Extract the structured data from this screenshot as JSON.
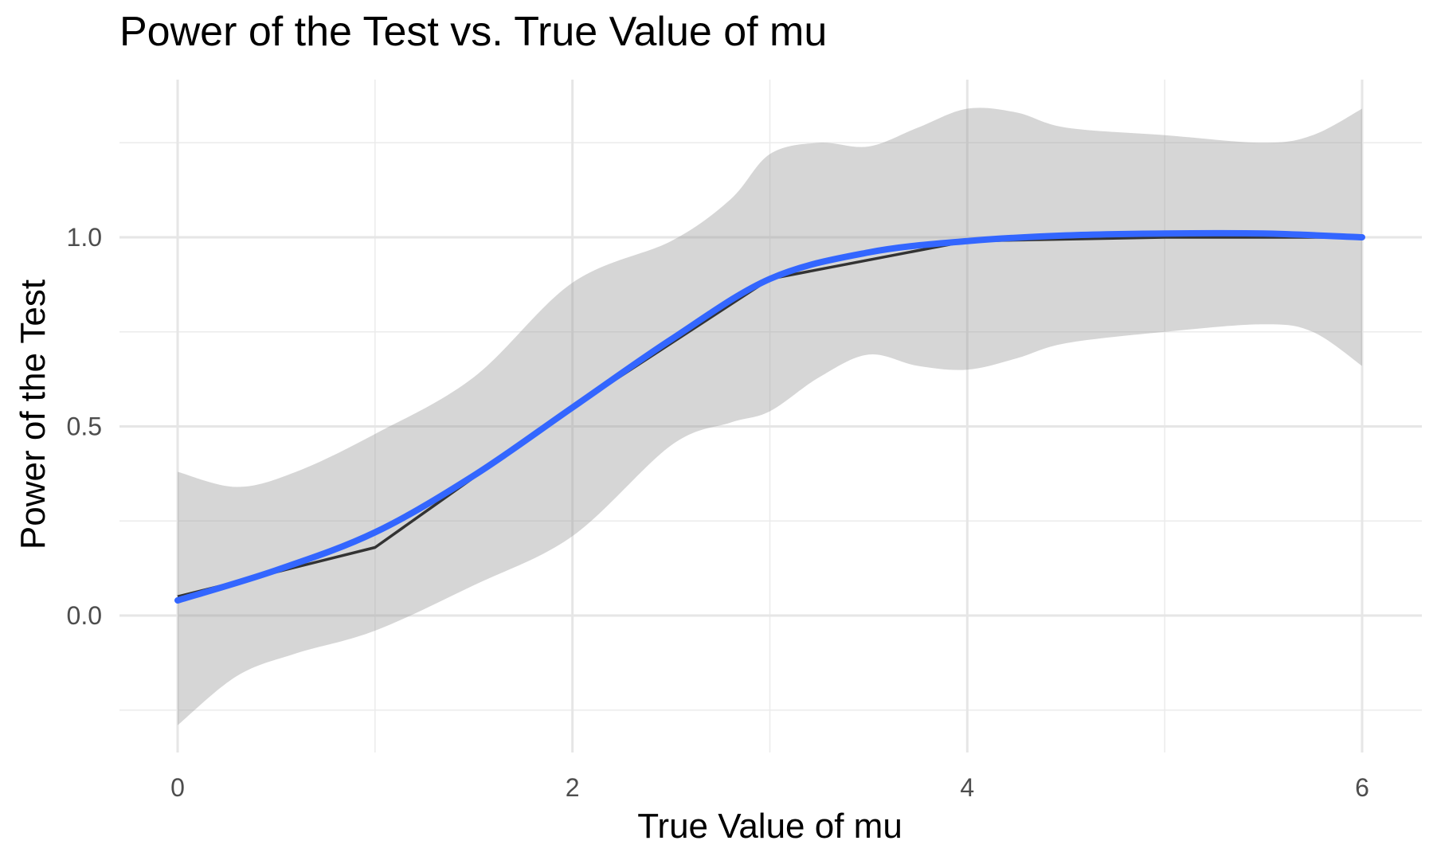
{
  "chart_data": {
    "type": "line",
    "title": "Power of the Test vs. True Value of mu",
    "xlabel": "True Value of mu",
    "ylabel": "Power of the Test",
    "xlim": [
      -0.3,
      6.3
    ],
    "ylim": [
      -0.35,
      1.42
    ],
    "x_ticks": [
      0,
      2,
      4,
      6
    ],
    "x_tick_labels": [
      "0",
      "2",
      "4",
      "6"
    ],
    "y_ticks": [
      0.0,
      0.5,
      1.0
    ],
    "y_tick_labels": [
      "0.0",
      "0.5",
      "1.0"
    ],
    "y_minor_ticks": [
      -0.25,
      0.25,
      0.75,
      1.25
    ],
    "x_minor_ticks": [
      1,
      3,
      5
    ],
    "grid": true,
    "series": [
      {
        "kind": "observed",
        "color": "#333333",
        "x": [
          0,
          1,
          2,
          3,
          4,
          5,
          6
        ],
        "y": [
          0.05,
          0.18,
          0.55,
          0.89,
          0.99,
          1.0,
          1.0
        ]
      },
      {
        "kind": "smooth",
        "color": "#3366FF",
        "x": [
          0,
          0.5,
          1,
          1.5,
          2,
          2.5,
          3,
          3.5,
          4,
          4.5,
          5,
          5.5,
          6
        ],
        "y": [
          0.04,
          0.12,
          0.22,
          0.37,
          0.55,
          0.73,
          0.89,
          0.96,
          0.99,
          1.005,
          1.01,
          1.01,
          1.0
        ]
      }
    ],
    "confidence_band": {
      "color": "#999999",
      "x": [
        0,
        0.3,
        0.6,
        1,
        1.5,
        2,
        2.5,
        2.8,
        3,
        3.25,
        3.5,
        3.75,
        4,
        4.25,
        4.5,
        5,
        5.5,
        5.75,
        6
      ],
      "upper": [
        0.38,
        0.34,
        0.38,
        0.48,
        0.63,
        0.88,
        0.99,
        1.1,
        1.22,
        1.25,
        1.24,
        1.29,
        1.34,
        1.33,
        1.29,
        1.27,
        1.25,
        1.27,
        1.34
      ],
      "lower": [
        -0.29,
        -0.16,
        -0.1,
        -0.04,
        0.08,
        0.21,
        0.45,
        0.51,
        0.54,
        0.63,
        0.69,
        0.66,
        0.65,
        0.68,
        0.72,
        0.75,
        0.77,
        0.75,
        0.66
      ]
    }
  }
}
